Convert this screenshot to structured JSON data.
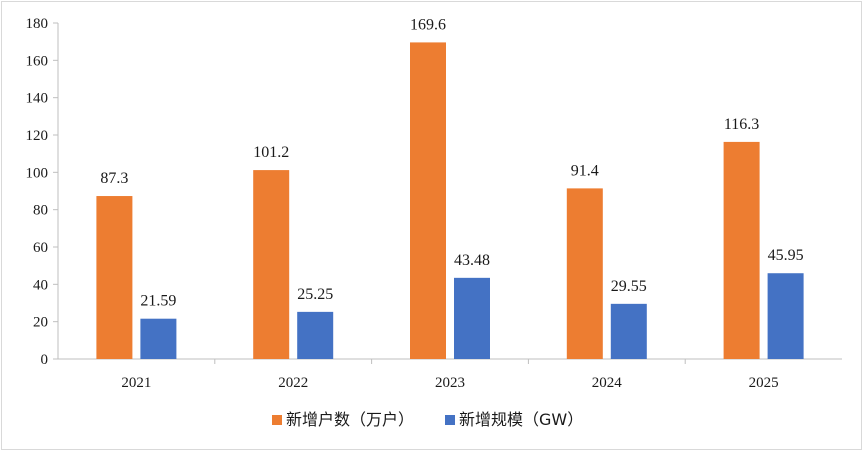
{
  "chart_data": {
    "type": "bar",
    "categories": [
      "2021",
      "2022",
      "2023",
      "2024",
      "2025"
    ],
    "series": [
      {
        "name": "新增户数（万户）",
        "values": [
          87.3,
          101.2,
          169.6,
          91.4,
          116.3
        ],
        "labels": [
          "87.3",
          "101.2",
          "169.6",
          "91.4",
          "116.3"
        ],
        "color": "#ED7D31"
      },
      {
        "name": "新增规模（GW）",
        "values": [
          21.59,
          25.25,
          43.48,
          29.55,
          45.95
        ],
        "labels": [
          "21.59",
          "25.25",
          "43.48",
          "29.55",
          "45.95"
        ],
        "color": "#4472C4"
      }
    ],
    "ylim": [
      0,
      180
    ],
    "yticks": [
      "0",
      "20",
      "40",
      "60",
      "80",
      "100",
      "120",
      "140",
      "160",
      "180"
    ],
    "grid": false,
    "legend": "bottom",
    "title": "",
    "xlabel": "",
    "ylabel": ""
  }
}
